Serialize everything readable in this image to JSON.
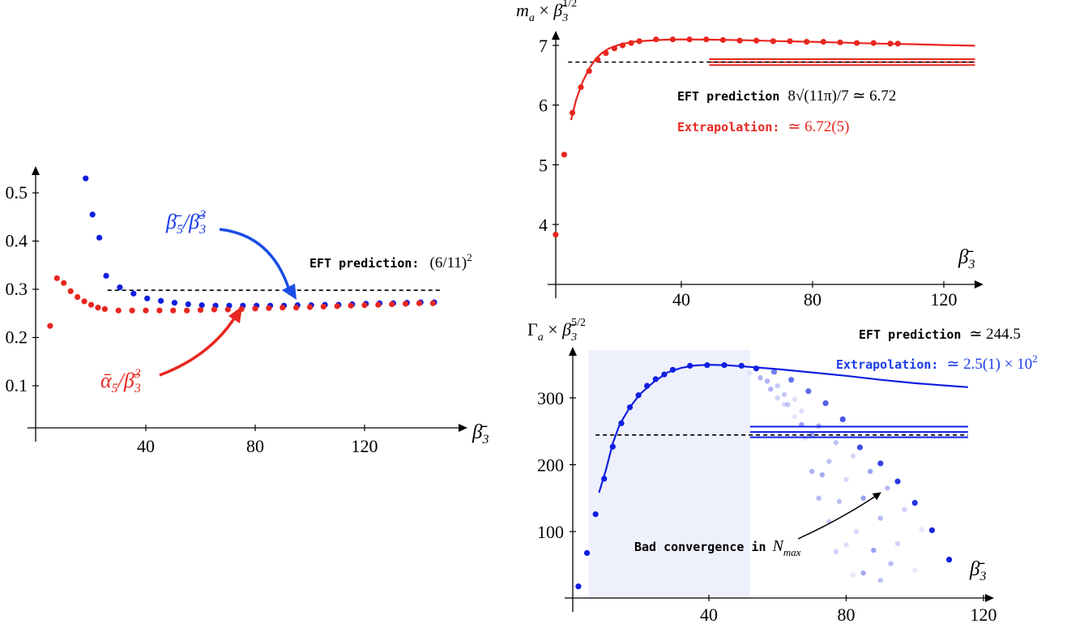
{
  "colors": {
    "red": "#e8261f",
    "blue": "#0f1fe0",
    "black": "#000000",
    "band": "#eef0fc"
  },
  "chart_data": [
    {
      "type": "scatter",
      "x_axis_label": "β̄3",
      "xlim": [
        0,
        150
      ],
      "ylim": [
        0,
        0.57
      ],
      "x_ticks": [
        "40",
        "80",
        "120"
      ],
      "y_ticks": [
        "0.1",
        "0.2",
        "0.3",
        "0.4",
        "0.5"
      ],
      "series": [
        {
          "name": "β̄5/β̄3³",
          "color": "blue",
          "points": [
            [
              18,
              0.53
            ],
            [
              20.5,
              0.455
            ],
            [
              23,
              0.407
            ],
            [
              25.5,
              0.328
            ],
            [
              30.5,
              0.304
            ],
            [
              35.5,
              0.291
            ],
            [
              40.5,
              0.281
            ],
            [
              45.5,
              0.276
            ],
            [
              50.5,
              0.272
            ],
            [
              55.5,
              0.269
            ],
            [
              60.5,
              0.267
            ],
            [
              65.5,
              0.266
            ],
            [
              70.5,
              0.266
            ],
            [
              75.5,
              0.266
            ],
            [
              80.5,
              0.266
            ],
            [
              85.5,
              0.266
            ],
            [
              90.5,
              0.266
            ],
            [
              95.5,
              0.267
            ],
            [
              100.5,
              0.267
            ],
            [
              105.5,
              0.268
            ],
            [
              110.5,
              0.268
            ],
            [
              115.5,
              0.269
            ],
            [
              120.5,
              0.27
            ],
            [
              125.5,
              0.271
            ],
            [
              130.5,
              0.271
            ],
            [
              135.5,
              0.272
            ],
            [
              140.5,
              0.273
            ],
            [
              145.5,
              0.273
            ]
          ]
        },
        {
          "name": "ᾱ5/β̄3³",
          "color": "red",
          "points": [
            [
              5,
              0.224
            ],
            [
              7.5,
              0.323
            ],
            [
              10,
              0.313
            ],
            [
              12.5,
              0.296
            ],
            [
              15,
              0.284
            ],
            [
              17.5,
              0.275
            ],
            [
              20,
              0.268
            ],
            [
              22.5,
              0.262
            ],
            [
              25,
              0.259
            ],
            [
              30,
              0.256
            ],
            [
              35,
              0.256
            ],
            [
              40,
              0.256
            ],
            [
              45,
              0.256
            ],
            [
              50,
              0.256
            ],
            [
              55,
              0.256
            ],
            [
              60,
              0.257
            ],
            [
              65,
              0.258
            ],
            [
              70,
              0.258
            ],
            [
              75,
              0.259
            ],
            [
              80,
              0.26
            ],
            [
              85,
              0.261
            ],
            [
              90,
              0.262
            ],
            [
              95,
              0.262
            ],
            [
              100,
              0.263
            ],
            [
              105,
              0.264
            ],
            [
              110,
              0.265
            ],
            [
              115,
              0.266
            ],
            [
              120,
              0.267
            ],
            [
              125,
              0.268
            ],
            [
              130,
              0.269
            ],
            [
              135,
              0.27
            ],
            [
              140,
              0.271
            ],
            [
              145,
              0.271
            ]
          ]
        }
      ],
      "eft_line": {
        "y": 0.298,
        "x_range": [
          26,
          148
        ]
      },
      "eft_label": "EFT prediction:",
      "eft_value": "(6/11)",
      "eft_exponent": "2",
      "label_blue_num": "β̄",
      "label_blue_sub": "5",
      "label_blue_den": "/β̄",
      "label_blue_den_sub": "3",
      "label_blue_den_sup": "3",
      "label_red_num": "ᾱ",
      "label_red_sub": "5",
      "label_red_den": "/β̄",
      "label_red_den_sub": "3",
      "label_red_den_sup": "3"
    },
    {
      "type": "line",
      "y_axis_label": "m_a × β̄3^(1/2)",
      "x_axis_label": "β̄3",
      "xlim": [
        0,
        130
      ],
      "ylim": [
        3.3,
        7.4
      ],
      "x_ticks": [
        "40",
        "80",
        "120"
      ],
      "y_ticks": [
        "4",
        "5",
        "6",
        "7"
      ],
      "points": [
        [
          1.7,
          3.83
        ],
        [
          4.3,
          5.17
        ],
        [
          6.8,
          5.87
        ],
        [
          9.4,
          6.3
        ],
        [
          11.9,
          6.57
        ],
        [
          14.5,
          6.76
        ],
        [
          17,
          6.87
        ],
        [
          19.6,
          6.95
        ],
        [
          22.1,
          7.0
        ],
        [
          24.7,
          7.04
        ],
        [
          27.2,
          7.07
        ],
        [
          32.3,
          7.1
        ],
        [
          37.4,
          7.1
        ],
        [
          42.5,
          7.1
        ],
        [
          47.6,
          7.1
        ],
        [
          52.7,
          7.09
        ],
        [
          57.8,
          7.08
        ],
        [
          62.9,
          7.08
        ],
        [
          68,
          7.07
        ],
        [
          73.1,
          7.07
        ],
        [
          78.2,
          7.06
        ],
        [
          83.3,
          7.06
        ],
        [
          88.4,
          7.05
        ],
        [
          93.5,
          7.04
        ],
        [
          98.6,
          7.04
        ],
        [
          103.7,
          7.03
        ],
        [
          106,
          7.03
        ]
      ],
      "fit_curve": [
        [
          6.4,
          5.75
        ],
        [
          8,
          6.1
        ],
        [
          10,
          6.4
        ],
        [
          12,
          6.62
        ],
        [
          14,
          6.78
        ],
        [
          16,
          6.88
        ],
        [
          18,
          6.95
        ],
        [
          21,
          7.01
        ],
        [
          25,
          7.06
        ],
        [
          30,
          7.08
        ],
        [
          35,
          7.095
        ],
        [
          40,
          7.1
        ],
        [
          50,
          7.095
        ],
        [
          60,
          7.085
        ],
        [
          70,
          7.07
        ],
        [
          80,
          7.06
        ],
        [
          90,
          7.045
        ],
        [
          100,
          7.03
        ],
        [
          110,
          7.02
        ],
        [
          120,
          7.005
        ],
        [
          129.5,
          6.995
        ]
      ],
      "eft_value_line": 6.72,
      "band": [
        6.67,
        6.72,
        6.77
      ],
      "band_x_range": [
        48.5,
        129.5
      ],
      "eft_line_x_range": [
        5.5,
        129.5
      ],
      "label_eft_text": "EFT prediction",
      "label_eft_formula": "8√(11π)/7 ≃ 6.72",
      "label_extrap_text": "Extrapolation:",
      "label_extrap_value": "≃ 6.72(5)"
    },
    {
      "type": "line",
      "y_axis_label": "Γ_a × β̄3^(5/2)",
      "x_axis_label": "β̄3",
      "xlim": [
        0,
        120
      ],
      "ylim": [
        0,
        380
      ],
      "x_ticks": [
        "40",
        "80",
        "120"
      ],
      "y_ticks": [
        "100",
        "200",
        "300"
      ],
      "shaded_region_x": [
        5,
        52
      ],
      "points": [
        [
          2,
          18
        ],
        [
          4.5,
          68
        ],
        [
          7,
          126
        ],
        [
          9.5,
          179
        ],
        [
          12,
          227
        ],
        [
          14.5,
          262
        ],
        [
          17,
          286
        ],
        [
          19.5,
          304
        ],
        [
          22,
          318
        ],
        [
          24.5,
          328
        ],
        [
          27,
          335
        ],
        [
          29.5,
          342
        ],
        [
          34.5,
          348
        ],
        [
          39.5,
          349
        ],
        [
          44.5,
          349
        ],
        [
          49.5,
          348
        ],
        [
          53.8,
          344
        ],
        [
          59,
          339
        ],
        [
          64,
          327
        ],
        [
          69,
          310
        ],
        [
          74,
          292
        ],
        [
          79,
          268
        ],
        [
          84,
          226
        ],
        [
          90,
          202
        ],
        [
          95,
          175
        ],
        [
          100,
          143
        ],
        [
          105,
          102
        ],
        [
          110,
          58
        ]
      ],
      "fit_curve": [
        [
          8,
          158
        ],
        [
          10,
          192
        ],
        [
          12,
          232
        ],
        [
          14,
          260
        ],
        [
          17,
          286
        ],
        [
          20,
          306
        ],
        [
          24,
          324
        ],
        [
          28,
          338
        ],
        [
          32,
          345
        ],
        [
          36,
          348.5
        ],
        [
          40,
          349.5
        ],
        [
          45,
          349
        ],
        [
          50,
          347
        ],
        [
          60,
          343
        ],
        [
          70,
          338
        ],
        [
          80,
          333
        ],
        [
          90,
          327
        ],
        [
          100,
          322
        ],
        [
          110,
          318
        ],
        [
          115.5,
          316
        ]
      ],
      "faded_points": [
        [
          52,
          337
        ],
        [
          57,
          325
        ],
        [
          62,
          305
        ],
        [
          67,
          280
        ],
        [
          72,
          258
        ],
        [
          77,
          233
        ],
        [
          82,
          213
        ],
        [
          87,
          190
        ],
        [
          92,
          165
        ],
        [
          97,
          133
        ],
        [
          102,
          103
        ],
        [
          55,
          330
        ],
        [
          60,
          318
        ],
        [
          65,
          298
        ],
        [
          70,
          245
        ],
        [
          75,
          205
        ],
        [
          80,
          178
        ],
        [
          85,
          150
        ],
        [
          90,
          120
        ],
        [
          95,
          82
        ],
        [
          100,
          42
        ],
        [
          58,
          313
        ],
        [
          63,
          290
        ],
        [
          68,
          240
        ],
        [
          73,
          185
        ],
        [
          78,
          145
        ],
        [
          83,
          100
        ],
        [
          88,
          72
        ],
        [
          93,
          52
        ],
        [
          60,
          300
        ],
        [
          65,
          272
        ],
        [
          70,
          190
        ],
        [
          75,
          115
        ],
        [
          80,
          80
        ],
        [
          85,
          38
        ],
        [
          90,
          27
        ],
        [
          62,
          290
        ],
        [
          67,
          260
        ],
        [
          72,
          150
        ],
        [
          77,
          70
        ],
        [
          82,
          35
        ]
      ],
      "eft_value_line": 244.5,
      "band": [
        241,
        249,
        257
      ],
      "band_x_range": [
        52,
        115.5
      ],
      "eft_line_x_range": [
        7,
        115.5
      ],
      "annotation_target": [
        90,
        158
      ],
      "label_eft_text": "EFT prediction",
      "label_eft_value": "≃ 244.5",
      "label_extrap_text": "Extrapolation:",
      "label_extrap_value": "≃ 2.5(1) × 10",
      "label_extrap_exponent": "2",
      "label_bad_text": "Bad convergence in",
      "label_bad_var": "N",
      "label_bad_sub": "max"
    }
  ]
}
